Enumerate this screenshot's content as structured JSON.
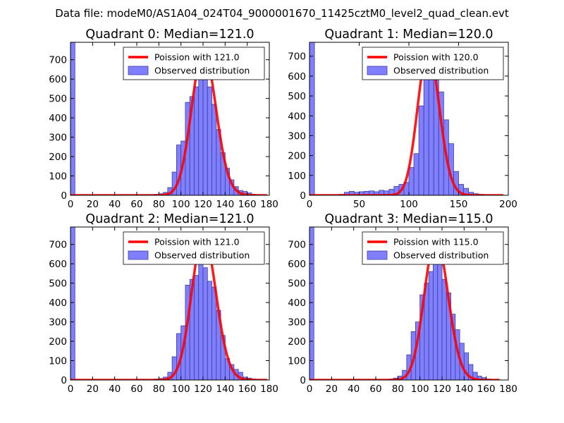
{
  "figure": {
    "suptitle": "Data file: modeM0/AS1A04_024T04_9000001670_11425cztM0_level2_quad_clean.evt"
  },
  "colors": {
    "bar_fill": "#8080ff",
    "bar_edge": "#3c3ca0",
    "curve": "#ff0000",
    "axis": "#000000"
  },
  "chart_data": [
    {
      "type": "bar",
      "panel": "q0",
      "title": "Quadrant 0: Median=121.0",
      "xlim": [
        0,
        180
      ],
      "ylim": [
        0,
        790
      ],
      "xticks": [
        "0",
        "20",
        "40",
        "60",
        "80",
        "100",
        "120",
        "140",
        "160",
        "180"
      ],
      "yticks": [
        "0",
        "100",
        "200",
        "300",
        "400",
        "500",
        "600",
        "700"
      ],
      "bin_width": 4,
      "hist_x": [
        0,
        76,
        80,
        84,
        88,
        92,
        96,
        100,
        104,
        108,
        112,
        116,
        120,
        124,
        128,
        132,
        136,
        140,
        144,
        148,
        152,
        156,
        160,
        164
      ],
      "hist_y": [
        790,
        5,
        8,
        15,
        40,
        120,
        260,
        280,
        480,
        510,
        560,
        640,
        600,
        560,
        470,
        340,
        220,
        140,
        80,
        45,
        25,
        20,
        12,
        5
      ],
      "legend": [
        {
          "kind": "line",
          "label": "Poission with 121.0"
        },
        {
          "kind": "patch",
          "label": "Observed distribution"
        }
      ],
      "poisson_mean": 121.0,
      "poisson_peak": 745,
      "curve_range": [
        0,
        178
      ]
    },
    {
      "type": "bar",
      "panel": "q1",
      "title": "Quadrant 1: Median=120.0",
      "xlim": [
        0,
        200
      ],
      "ylim": [
        0,
        770
      ],
      "xticks": [
        "0",
        "50",
        "100",
        "150",
        "200"
      ],
      "yticks": [
        "0",
        "100",
        "200",
        "300",
        "400",
        "500",
        "600",
        "700"
      ],
      "bin_width": 5,
      "hist_x": [
        0,
        30,
        35,
        40,
        45,
        50,
        55,
        60,
        65,
        70,
        75,
        80,
        85,
        90,
        95,
        100,
        105,
        110,
        115,
        120,
        125,
        130,
        135,
        140,
        145,
        150,
        155,
        160,
        165,
        170
      ],
      "hist_y": [
        770,
        5,
        15,
        20,
        15,
        18,
        20,
        22,
        18,
        25,
        22,
        30,
        45,
        55,
        65,
        140,
        210,
        450,
        600,
        700,
        620,
        520,
        380,
        260,
        120,
        55,
        35,
        15,
        8,
        5
      ],
      "legend": [
        {
          "kind": "line",
          "label": "Poission with 120.0"
        },
        {
          "kind": "patch",
          "label": "Observed distribution"
        }
      ],
      "poisson_mean": 120.0,
      "poisson_peak": 730,
      "curve_range": [
        0,
        195
      ]
    },
    {
      "type": "bar",
      "panel": "q2",
      "title": "Quadrant 2: Median=121.0",
      "xlim": [
        0,
        180
      ],
      "ylim": [
        0,
        790
      ],
      "xticks": [
        "0",
        "20",
        "40",
        "60",
        "80",
        "100",
        "120",
        "140",
        "160",
        "180"
      ],
      "yticks": [
        "0",
        "100",
        "200",
        "300",
        "400",
        "500",
        "600",
        "700"
      ],
      "bin_width": 4,
      "hist_x": [
        0,
        76,
        80,
        84,
        88,
        92,
        96,
        100,
        104,
        108,
        112,
        116,
        120,
        124,
        128,
        132,
        136,
        140,
        144,
        148,
        152,
        156,
        160,
        164
      ],
      "hist_y": [
        790,
        5,
        8,
        15,
        40,
        120,
        240,
        280,
        490,
        520,
        540,
        620,
        580,
        510,
        480,
        360,
        230,
        110,
        80,
        55,
        40,
        15,
        10,
        5
      ],
      "legend": [
        {
          "kind": "line",
          "label": "Poission with 121.0"
        },
        {
          "kind": "patch",
          "label": "Observed distribution"
        }
      ],
      "poisson_mean": 121.0,
      "poisson_peak": 745,
      "curve_range": [
        0,
        178
      ]
    },
    {
      "type": "bar",
      "panel": "q3",
      "title": "Quadrant 3: Median=115.0",
      "xlim": [
        0,
        180
      ],
      "ylim": [
        0,
        790
      ],
      "xticks": [
        "0",
        "20",
        "40",
        "60",
        "80",
        "100",
        "120",
        "140",
        "160",
        "180"
      ],
      "yticks": [
        "0",
        "100",
        "200",
        "300",
        "400",
        "500",
        "600",
        "700"
      ],
      "bin_width": 4,
      "hist_x": [
        0,
        72,
        76,
        80,
        84,
        88,
        92,
        96,
        100,
        104,
        108,
        112,
        116,
        120,
        124,
        128,
        132,
        136,
        140,
        144,
        148,
        152,
        156,
        160
      ],
      "hist_y": [
        790,
        5,
        10,
        20,
        50,
        130,
        250,
        300,
        440,
        500,
        560,
        650,
        610,
        520,
        450,
        340,
        260,
        190,
        140,
        80,
        40,
        20,
        12,
        5
      ],
      "legend": [
        {
          "kind": "line",
          "label": "Poission with 115.0"
        },
        {
          "kind": "patch",
          "label": "Observed distribution"
        }
      ],
      "poisson_mean": 115.0,
      "poisson_peak": 730,
      "curve_range": [
        0,
        172
      ]
    }
  ]
}
